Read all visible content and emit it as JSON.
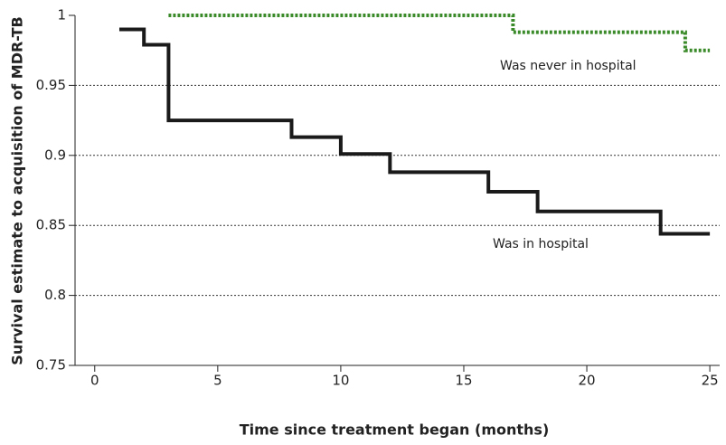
{
  "chart_data": {
    "type": "step",
    "xlabel": "Time since treatment began (months)",
    "ylabel": "Survival estimate to acquisition of MDR-TB",
    "xlim": [
      -0.8,
      25.4
    ],
    "ylim": [
      0.75,
      1
    ],
    "xticks": [
      0,
      5,
      10,
      15,
      20,
      25
    ],
    "yticks": [
      0.75,
      0.8,
      0.85,
      0.9,
      0.95,
      1
    ],
    "grid": true,
    "series": [
      {
        "name": "Was never in hospital",
        "color": "#3a8a2a",
        "dash": "dotted",
        "x": [
          3,
          17,
          24,
          25
        ],
        "values": [
          1,
          0.988,
          0.975,
          0.975
        ]
      },
      {
        "name": "Was in hospital",
        "color": "#1a1a1a",
        "dash": "solid",
        "x": [
          1,
          2,
          3,
          8,
          10,
          12,
          16,
          18,
          23,
          25
        ],
        "values": [
          0.99,
          0.979,
          0.925,
          0.913,
          0.901,
          0.888,
          0.874,
          0.86,
          0.844,
          0.844
        ]
      }
    ]
  }
}
